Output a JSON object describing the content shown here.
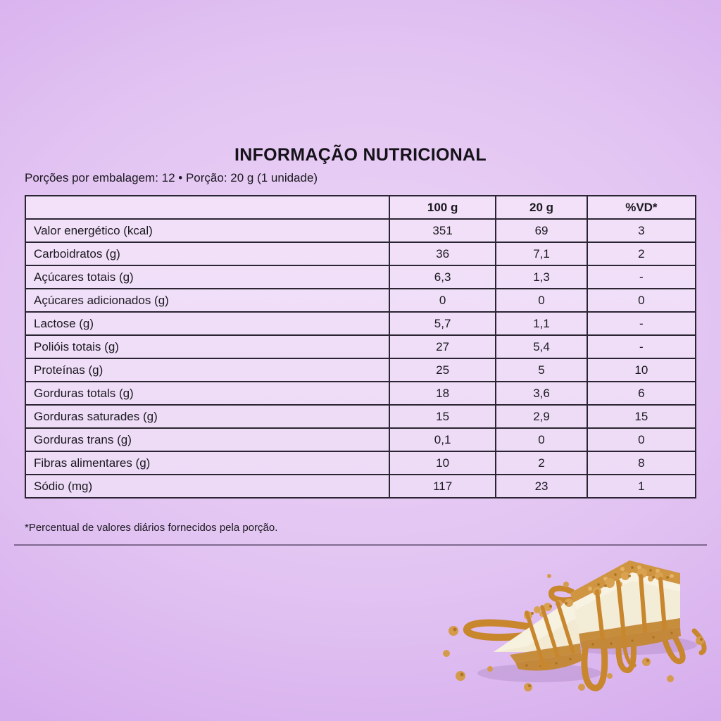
{
  "header": {
    "title": "INFORMAÇÃO NUTRICIONAL",
    "servings_line": "Porções por embalagem: 12 • Porção: 20 g (1 unidade)",
    "footnote": "*Percentual de valores diários fornecidos pela porção."
  },
  "table": {
    "columns": [
      "",
      "100 g",
      "20 g",
      "%VD*"
    ],
    "rows": [
      {
        "label": "Valor energético (kcal)",
        "per100": "351",
        "per20": "69",
        "vd": "3"
      },
      {
        "label": "Carboidratos (g)",
        "per100": "36",
        "per20": "7,1",
        "vd": "2"
      },
      {
        "label": "Açúcares totais (g)",
        "per100": "6,3",
        "per20": "1,3",
        "vd": "-"
      },
      {
        "label": "Açúcares adicionados (g)",
        "per100": "0",
        "per20": "0",
        "vd": "0"
      },
      {
        "label": "Lactose (g)",
        "per100": "5,7",
        "per20": "1,1",
        "vd": "-"
      },
      {
        "label": "Polióis totais (g)",
        "per100": "27",
        "per20": "5,4",
        "vd": "-"
      },
      {
        "label": "Proteínas (g)",
        "per100": "25",
        "per20": "5",
        "vd": "10"
      },
      {
        "label": "Gorduras totals (g)",
        "per100": "18",
        "per20": "3,6",
        "vd": "6"
      },
      {
        "label": "Gorduras saturades (g)",
        "per100": "15",
        "per20": "2,9",
        "vd": "15"
      },
      {
        "label": "Gorduras trans (g)",
        "per100": "0,1",
        "per20": "0",
        "vd": "0"
      },
      {
        "label": "Fibras alimentares (g)",
        "per100": "10",
        "per20": "2",
        "vd": "8"
      },
      {
        "label": "Sódio (mg)",
        "per100": "117",
        "per20": "23",
        "vd": "1"
      }
    ]
  },
  "illustration": {
    "name": "caramel-cheesecake-slices",
    "description": "Two caramel cheesecake pieces with crumb crust, caramel drizzle and crumbs"
  },
  "colors": {
    "background": "#d4abec",
    "table_background": "#efddf7",
    "grid_line": "#2b2533",
    "text": "#1b1820",
    "caramel": "#c8862d",
    "cream": "#f2ead3",
    "crust": "#c4883a"
  }
}
